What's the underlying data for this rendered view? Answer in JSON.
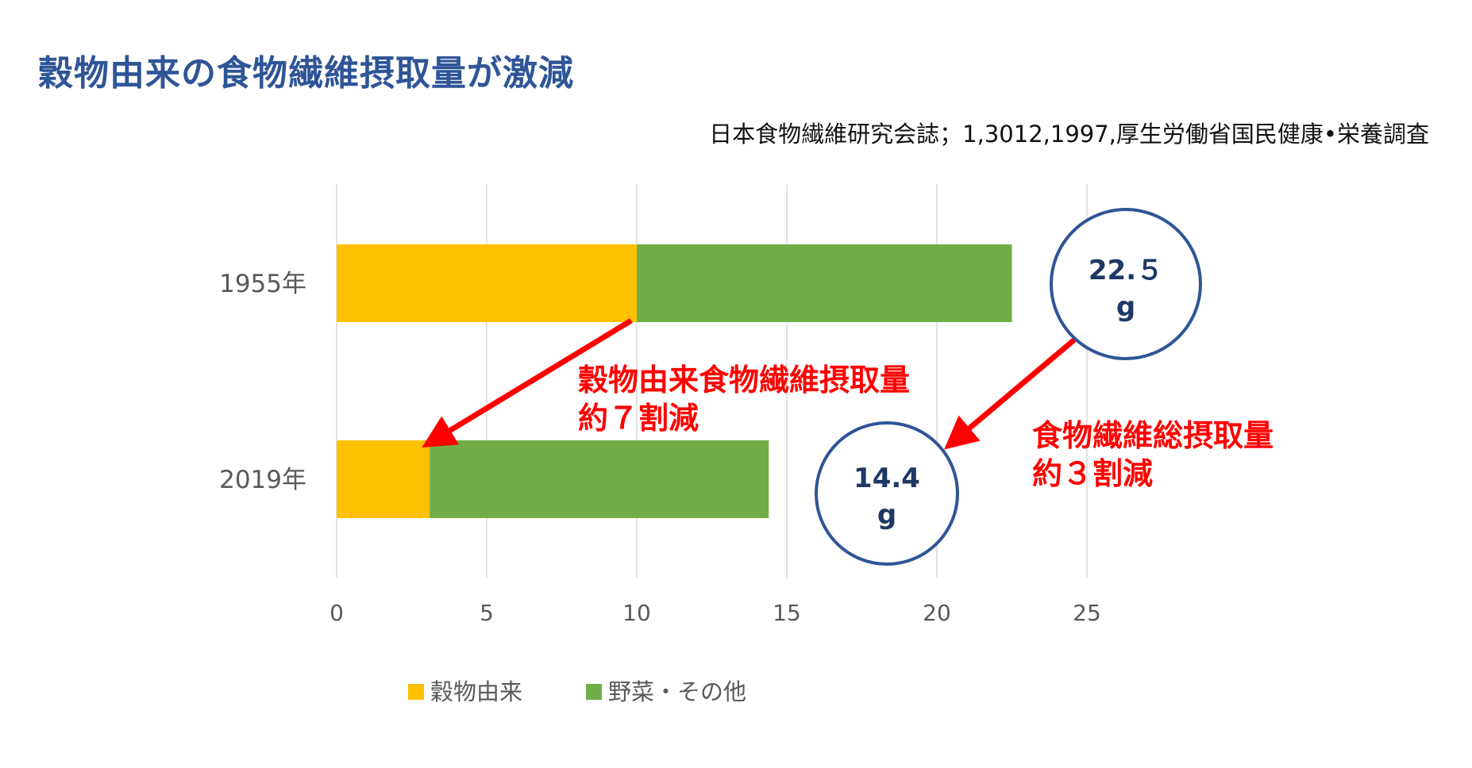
{
  "title": "穀物由来の食物繊維摂取量が激減",
  "source": "日本食物繊維研究会誌；1,3012,1997,厚生労働省国民健康•栄養調査",
  "colors": {
    "title": "#2F5597",
    "cereal": "#FFC000",
    "vegetable": "#70AD47",
    "arrow": "#FF0000",
    "circle": "#2F5597",
    "circle_text": "#1F3864",
    "grid": "#D9D9D9",
    "axis_text": "#595959"
  },
  "chart_data": {
    "type": "bar",
    "orientation": "horizontal",
    "stacked": true,
    "categories": [
      "1955年",
      "2019年"
    ],
    "series": [
      {
        "name": "穀物由来",
        "values": [
          10,
          3.1
        ]
      },
      {
        "name": "野菜・その他",
        "values": [
          12.5,
          11.3
        ]
      }
    ],
    "xlim": [
      0,
      25
    ],
    "xticks": [
      "0",
      "5",
      "10",
      "15",
      "20",
      "25"
    ],
    "grid": true,
    "legend": "bottom",
    "annotations": [
      {
        "line1": "穀物由来食物繊維摂取量",
        "line2": "約７割減"
      },
      {
        "line1": "食物繊維総摂取量",
        "line2": "約３割減"
      }
    ],
    "totals": [
      {
        "line1": "22.５",
        "line2": "g"
      },
      {
        "line1": "14.4",
        "line2": "g"
      }
    ]
  }
}
